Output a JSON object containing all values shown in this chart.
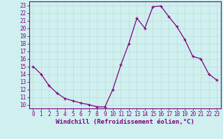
{
  "x": [
    0,
    1,
    2,
    3,
    4,
    5,
    6,
    7,
    8,
    9,
    10,
    11,
    12,
    13,
    14,
    15,
    16,
    17,
    18,
    19,
    20,
    21,
    22,
    23
  ],
  "y": [
    15,
    14,
    12.5,
    11.5,
    10.8,
    10.5,
    10.2,
    10.0,
    9.7,
    9.7,
    12.0,
    15.2,
    18.0,
    21.3,
    20.0,
    22.8,
    22.9,
    21.5,
    20.2,
    18.5,
    16.3,
    16.0,
    14.0,
    13.2
  ],
  "line_color": "#800080",
  "marker": "+",
  "marker_size": 3,
  "xlabel": "Windchill (Refroidissement éolien,°C)",
  "xlim": [
    -0.5,
    23.5
  ],
  "ylim": [
    9.5,
    23.5
  ],
  "yticks": [
    10,
    11,
    12,
    13,
    14,
    15,
    16,
    17,
    18,
    19,
    20,
    21,
    22,
    23
  ],
  "xticks": [
    0,
    1,
    2,
    3,
    4,
    5,
    6,
    7,
    8,
    9,
    10,
    11,
    12,
    13,
    14,
    15,
    16,
    17,
    18,
    19,
    20,
    21,
    22,
    23
  ],
  "background_color": "#cff0ef",
  "grid_color": "#c0dede",
  "tick_label_color": "#800080",
  "font_size": 5.5,
  "xlabel_font_size": 6.5
}
